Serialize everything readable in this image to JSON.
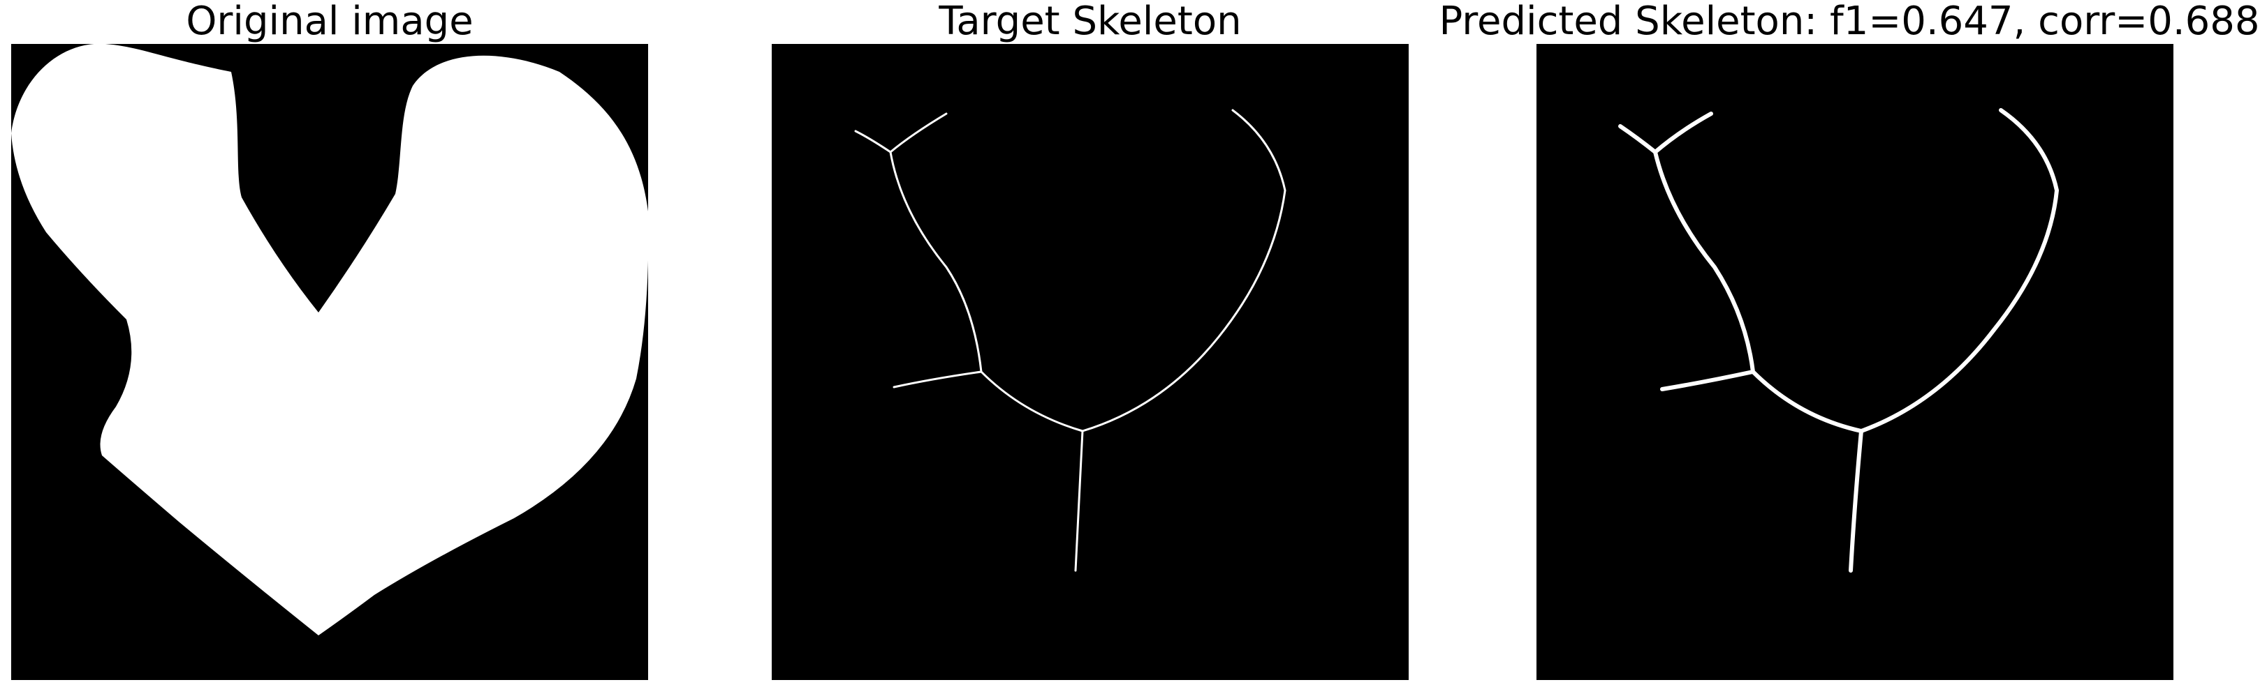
{
  "panels": [
    {
      "title": "Original image"
    },
    {
      "title": "Target Skeleton"
    },
    {
      "title": "Predicted Skeleton: f1=0.647, corr=0.688"
    }
  ],
  "colors": {
    "background": "#000000",
    "foreground": "#ffffff",
    "figure_background": "#ffffff",
    "title_text": "#000000"
  }
}
